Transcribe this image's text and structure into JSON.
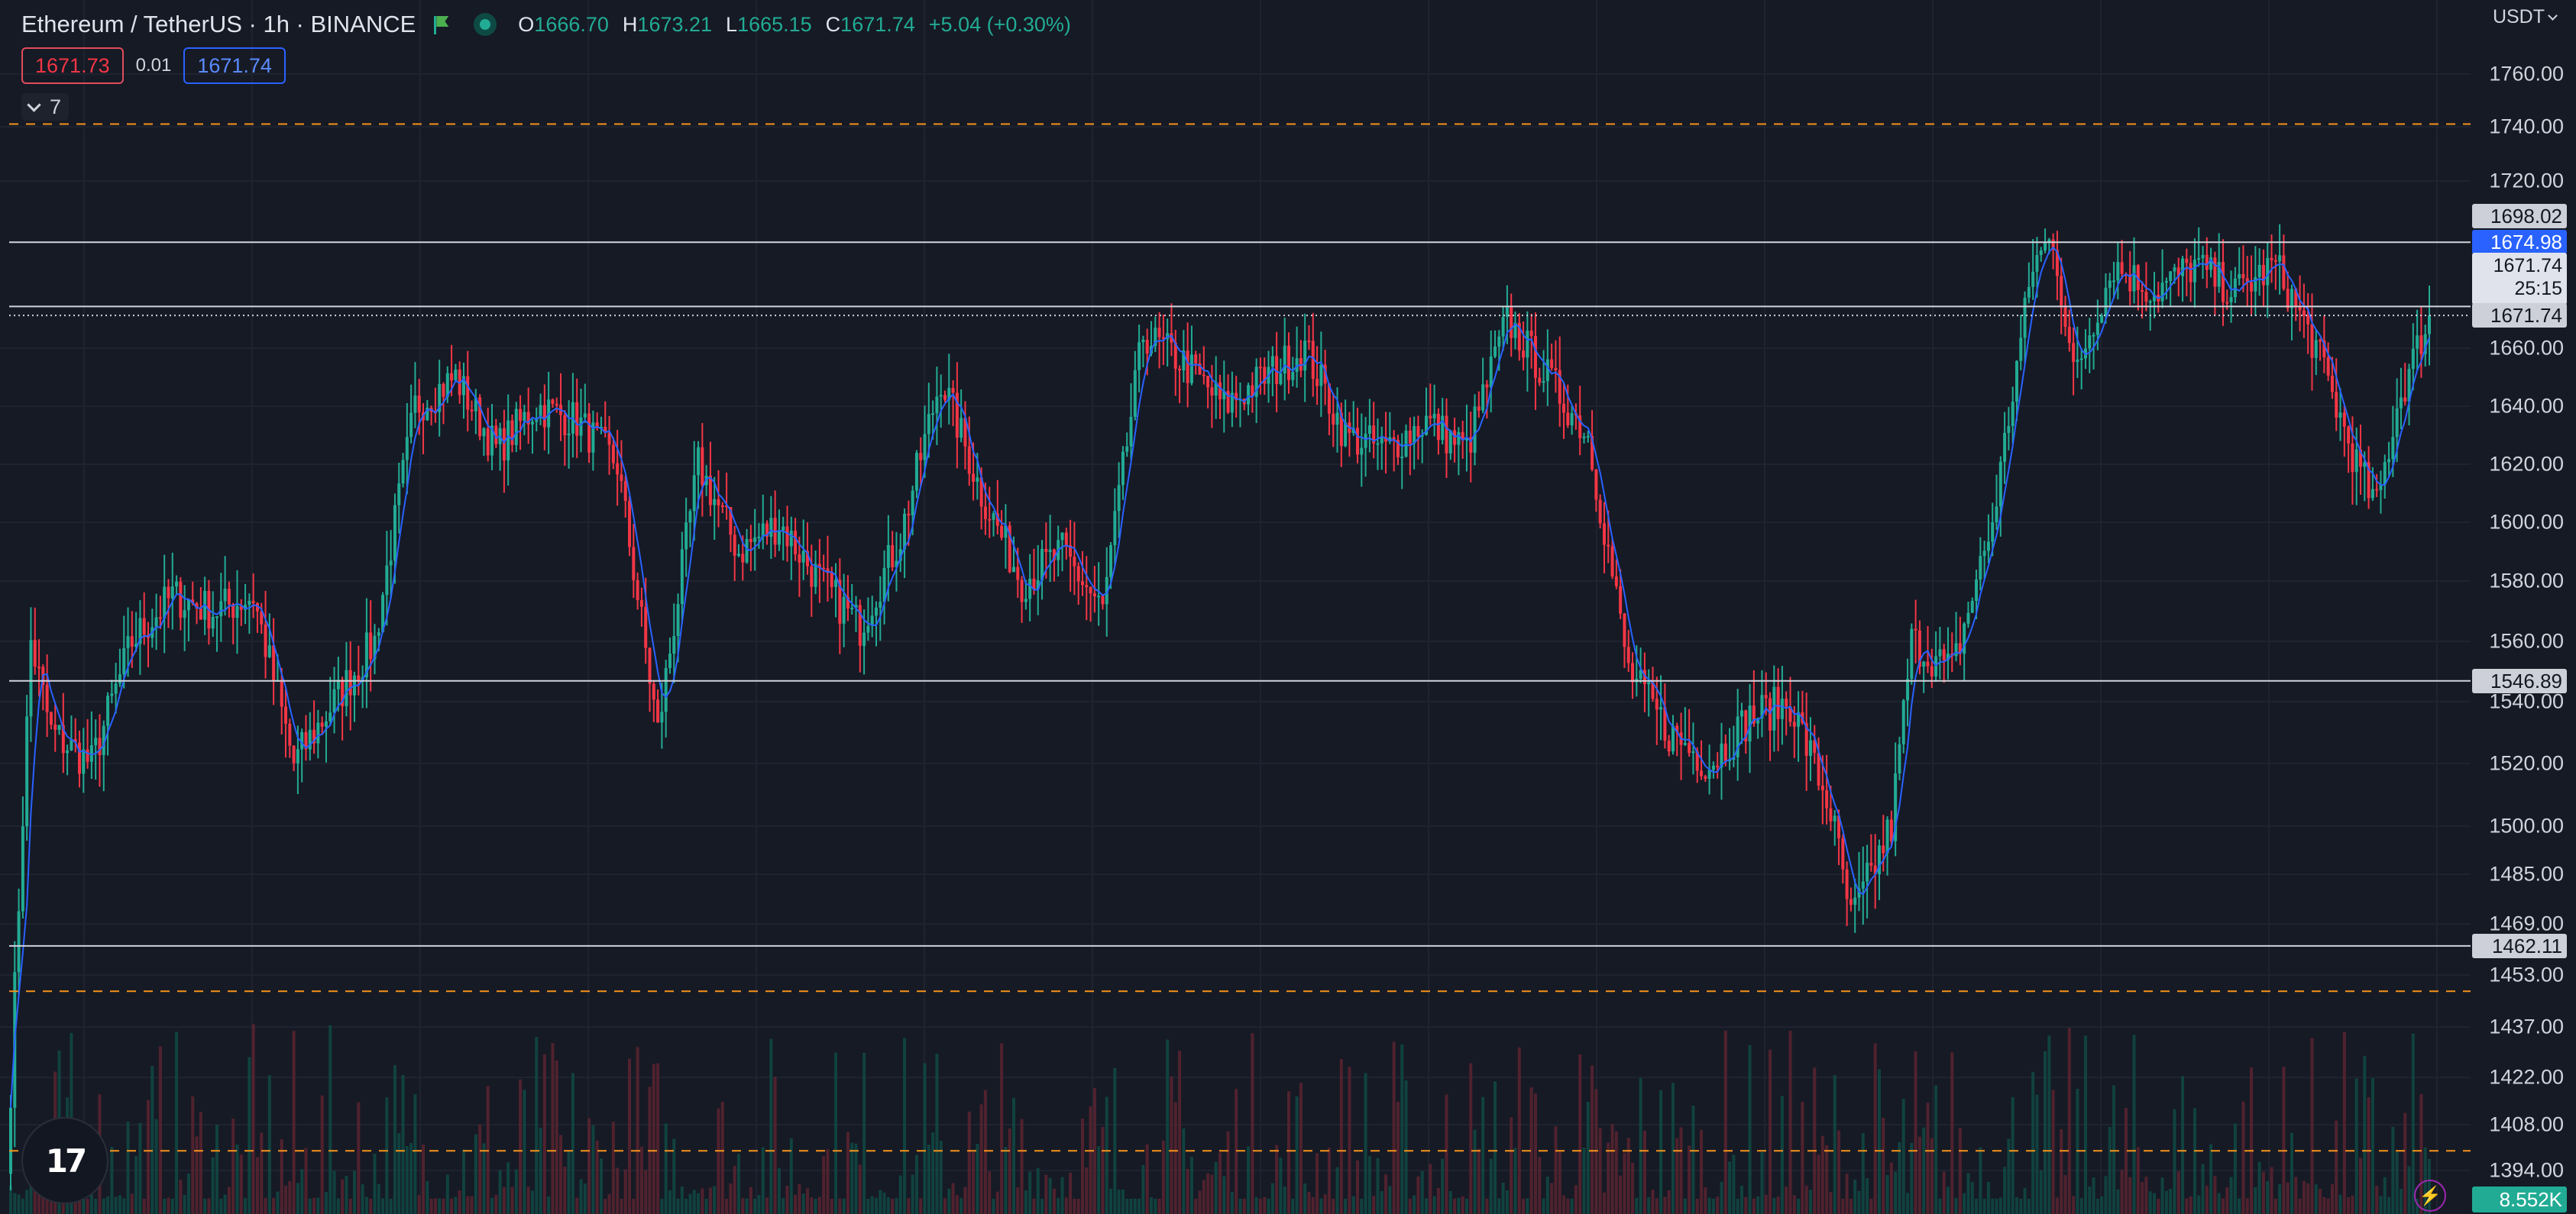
{
  "header": {
    "symbol_title": "Ethereum / TetherUS · 1h · BINANCE",
    "ohlc": [
      {
        "key": "O",
        "value": "1666.70"
      },
      {
        "key": "H",
        "value": "1673.21"
      },
      {
        "key": "L",
        "value": "1665.15"
      },
      {
        "key": "C",
        "value": "1671.74"
      }
    ],
    "change": "+5.04 (+0.30%)",
    "sell_price": "1671.73",
    "spread": "0.01",
    "buy_price": "1671.74",
    "indicators_collapsed_count": "7"
  },
  "price_axis": {
    "currency": "USDT",
    "ticks": [
      "1760.00",
      "1740.00",
      "1720.00",
      "1660.00",
      "1640.00",
      "1620.00",
      "1600.00",
      "1580.00",
      "1560.00",
      "1540.00",
      "1520.00",
      "1500.00",
      "1485.00",
      "1469.00",
      "1453.00",
      "1437.00",
      "1422.00",
      "1408.00",
      "1394.00"
    ],
    "horizontal_line_labels": [
      "1698.02",
      "1674.98",
      "1546.89",
      "1462.11"
    ],
    "last_price_label": "1671.74",
    "countdown_price": "1671.74",
    "countdown_time": "25:15",
    "volume_label": "8.552K"
  },
  "chart_data": {
    "type": "candlestick",
    "symbol": "ETHUSDT",
    "interval": "1h",
    "exchange": "BINANCE",
    "last_close": 1671.74,
    "price_close_path": [
      {
        "bar": 0,
        "close": 1420
      },
      {
        "bar": 5,
        "close": 1560
      },
      {
        "bar": 10,
        "close": 1530
      },
      {
        "bar": 20,
        "close": 1520
      },
      {
        "bar": 30,
        "close": 1560
      },
      {
        "bar": 40,
        "close": 1575
      },
      {
        "bar": 50,
        "close": 1570
      },
      {
        "bar": 60,
        "close": 1575
      },
      {
        "bar": 70,
        "close": 1520
      },
      {
        "bar": 80,
        "close": 1540
      },
      {
        "bar": 90,
        "close": 1560
      },
      {
        "bar": 100,
        "close": 1640
      },
      {
        "bar": 110,
        "close": 1650
      },
      {
        "bar": 120,
        "close": 1625
      },
      {
        "bar": 130,
        "close": 1640
      },
      {
        "bar": 140,
        "close": 1635
      },
      {
        "bar": 150,
        "close": 1620
      },
      {
        "bar": 160,
        "close": 1530
      },
      {
        "bar": 170,
        "close": 1620
      },
      {
        "bar": 180,
        "close": 1590
      },
      {
        "bar": 190,
        "close": 1600
      },
      {
        "bar": 200,
        "close": 1580
      },
      {
        "bar": 210,
        "close": 1565
      },
      {
        "bar": 220,
        "close": 1595
      },
      {
        "bar": 230,
        "close": 1650
      },
      {
        "bar": 240,
        "close": 1610
      },
      {
        "bar": 250,
        "close": 1580
      },
      {
        "bar": 260,
        "close": 1590
      },
      {
        "bar": 270,
        "close": 1570
      },
      {
        "bar": 280,
        "close": 1665
      },
      {
        "bar": 290,
        "close": 1655
      },
      {
        "bar": 300,
        "close": 1640
      },
      {
        "bar": 310,
        "close": 1650
      },
      {
        "bar": 320,
        "close": 1660
      },
      {
        "bar": 330,
        "close": 1630
      },
      {
        "bar": 340,
        "close": 1625
      },
      {
        "bar": 350,
        "close": 1635
      },
      {
        "bar": 360,
        "close": 1625
      },
      {
        "bar": 370,
        "close": 1670
      },
      {
        "bar": 380,
        "close": 1650
      },
      {
        "bar": 390,
        "close": 1630
      },
      {
        "bar": 400,
        "close": 1550
      },
      {
        "bar": 410,
        "close": 1530
      },
      {
        "bar": 420,
        "close": 1520
      },
      {
        "bar": 430,
        "close": 1535
      },
      {
        "bar": 440,
        "close": 1540
      },
      {
        "bar": 450,
        "close": 1505
      },
      {
        "bar": 455,
        "close": 1470
      },
      {
        "bar": 465,
        "close": 1500
      },
      {
        "bar": 470,
        "close": 1560
      },
      {
        "bar": 480,
        "close": 1550
      },
      {
        "bar": 490,
        "close": 1600
      },
      {
        "bar": 500,
        "close": 1690
      },
      {
        "bar": 505,
        "close": 1700
      },
      {
        "bar": 510,
        "close": 1650
      },
      {
        "bar": 520,
        "close": 1690
      },
      {
        "bar": 530,
        "close": 1680
      },
      {
        "bar": 540,
        "close": 1690
      },
      {
        "bar": 550,
        "close": 1680
      },
      {
        "bar": 560,
        "close": 1690
      },
      {
        "bar": 570,
        "close": 1660
      },
      {
        "bar": 580,
        "close": 1620
      },
      {
        "bar": 585,
        "close": 1605
      },
      {
        "bar": 590,
        "close": 1640
      },
      {
        "bar": 598,
        "close": 1671.74
      }
    ],
    "horizontal_lines": [
      1698.02,
      1674.98,
      1546.89,
      1462.11
    ],
    "dashed_levels": [
      1741,
      1448,
      1400
    ],
    "colors": {
      "up": "#22ab94",
      "down": "#f23645",
      "ma": "#2962ff",
      "dashed": "#f7931a"
    }
  }
}
